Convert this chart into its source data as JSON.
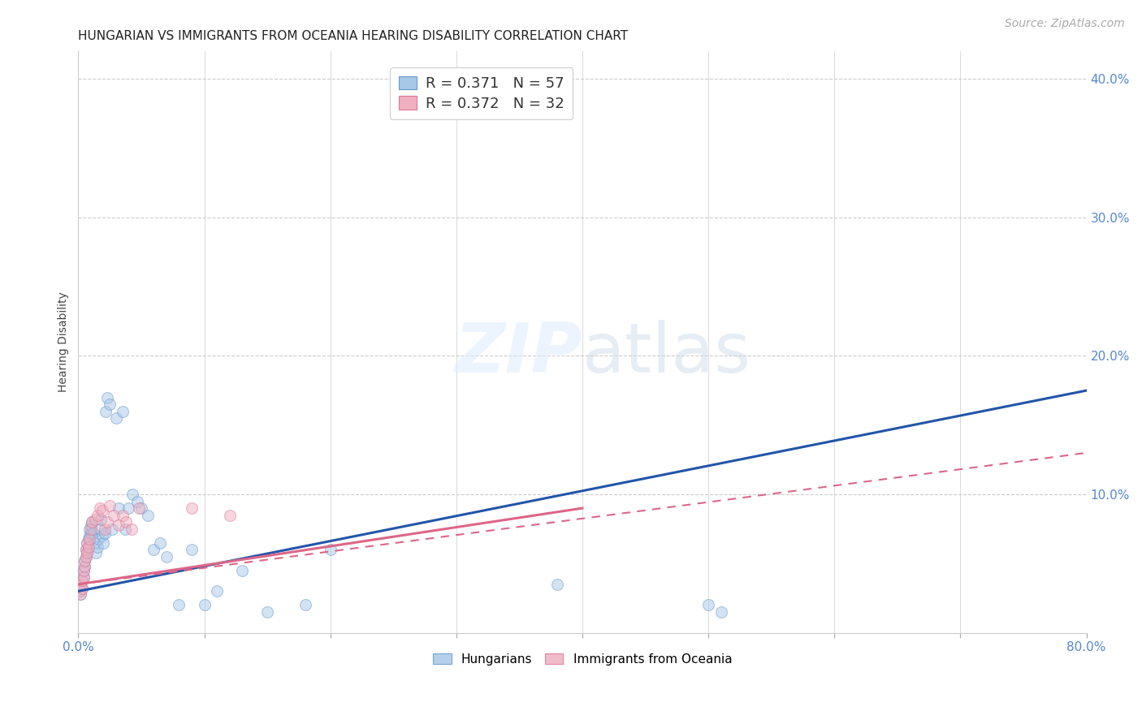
{
  "title": "HUNGARIAN VS IMMIGRANTS FROM OCEANIA HEARING DISABILITY CORRELATION CHART",
  "source": "Source: ZipAtlas.com",
  "ylabel": "Hearing Disability",
  "xlim": [
    0.0,
    0.8
  ],
  "ylim": [
    0.0,
    0.42
  ],
  "xtick_positions": [
    0.0,
    0.1,
    0.2,
    0.3,
    0.4,
    0.5,
    0.6,
    0.7,
    0.8
  ],
  "xticklabels": [
    "0.0%",
    "",
    "",
    "",
    "",
    "",
    "",
    "",
    "80.0%"
  ],
  "yticks_right": [
    0.1,
    0.2,
    0.3,
    0.4
  ],
  "blue_scatter_x": [
    0.001,
    0.002,
    0.002,
    0.003,
    0.003,
    0.004,
    0.004,
    0.005,
    0.005,
    0.006,
    0.006,
    0.007,
    0.007,
    0.008,
    0.008,
    0.009,
    0.009,
    0.01,
    0.01,
    0.011,
    0.012,
    0.013,
    0.014,
    0.015,
    0.016,
    0.017,
    0.018,
    0.019,
    0.02,
    0.021,
    0.022,
    0.023,
    0.025,
    0.027,
    0.03,
    0.032,
    0.035,
    0.037,
    0.04,
    0.043,
    0.047,
    0.05,
    0.055,
    0.06,
    0.065,
    0.07,
    0.08,
    0.09,
    0.1,
    0.11,
    0.13,
    0.15,
    0.18,
    0.2,
    0.38,
    0.5,
    0.51
  ],
  "blue_scatter_y": [
    0.03,
    0.028,
    0.035,
    0.032,
    0.038,
    0.04,
    0.045,
    0.048,
    0.052,
    0.055,
    0.06,
    0.058,
    0.065,
    0.062,
    0.068,
    0.07,
    0.075,
    0.072,
    0.078,
    0.08,
    0.072,
    0.065,
    0.058,
    0.062,
    0.068,
    0.075,
    0.082,
    0.07,
    0.065,
    0.072,
    0.16,
    0.17,
    0.165,
    0.075,
    0.155,
    0.09,
    0.16,
    0.075,
    0.09,
    0.1,
    0.095,
    0.09,
    0.085,
    0.06,
    0.065,
    0.055,
    0.02,
    0.06,
    0.02,
    0.03,
    0.045,
    0.015,
    0.02,
    0.06,
    0.035,
    0.02,
    0.015
  ],
  "pink_scatter_x": [
    0.001,
    0.002,
    0.002,
    0.003,
    0.003,
    0.004,
    0.004,
    0.005,
    0.005,
    0.006,
    0.006,
    0.007,
    0.007,
    0.008,
    0.009,
    0.01,
    0.011,
    0.013,
    0.015,
    0.017,
    0.019,
    0.021,
    0.023,
    0.025,
    0.028,
    0.032,
    0.035,
    0.038,
    0.042,
    0.048,
    0.09,
    0.12
  ],
  "pink_scatter_y": [
    0.03,
    0.028,
    0.035,
    0.032,
    0.038,
    0.04,
    0.045,
    0.048,
    0.052,
    0.055,
    0.06,
    0.058,
    0.065,
    0.062,
    0.068,
    0.075,
    0.08,
    0.082,
    0.085,
    0.09,
    0.088,
    0.075,
    0.08,
    0.092,
    0.085,
    0.078,
    0.085,
    0.08,
    0.075,
    0.09,
    0.09,
    0.085
  ],
  "blue_line_x": [
    0.0,
    0.8
  ],
  "blue_line_y": [
    0.03,
    0.175
  ],
  "pink_solid_line_x": [
    0.0,
    0.4
  ],
  "pink_solid_line_y": [
    0.035,
    0.09
  ],
  "pink_dashed_line_x": [
    0.0,
    0.8
  ],
  "pink_dashed_line_y": [
    0.035,
    0.13
  ],
  "scatter_alpha": 0.5,
  "scatter_size": 100,
  "blue_color": "#a8c8e8",
  "blue_edge_color": "#6699cc",
  "pink_color": "#f0b0c0",
  "pink_edge_color": "#dd7799",
  "blue_line_color": "#2255aa",
  "pink_line_color": "#dd6688",
  "grid_color": "#cccccc",
  "axis_color": "#5588cc",
  "background_color": "#ffffff",
  "title_fontsize": 11,
  "label_fontsize": 10,
  "tick_fontsize": 11,
  "source_fontsize": 10,
  "legend_r_color": "#2255aa",
  "legend_n_color": "#dd4444",
  "legend_r2_color": "#dd6688",
  "legend_n2_color": "#dd4444"
}
